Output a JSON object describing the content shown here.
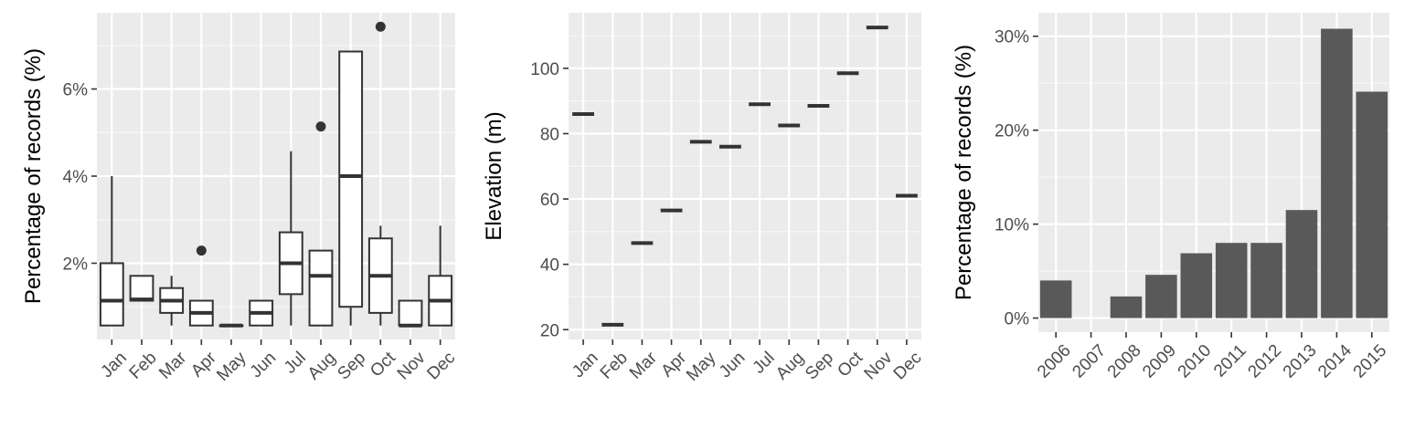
{
  "chart_data": [
    {
      "type": "box",
      "xlabel": "",
      "ylabel": "Percentage of records (%)",
      "ylim": [
        0.25,
        7.75
      ],
      "yticks": [
        2,
        4,
        6
      ],
      "ytick_labels": [
        "2%",
        "4%",
        "6%"
      ],
      "grid": true,
      "categories": [
        "Jan",
        "Feb",
        "Mar",
        "Apr",
        "May",
        "Jun",
        "Jul",
        "Aug",
        "Sep",
        "Oct",
        "Nov",
        "Dec"
      ],
      "boxes": [
        {
          "whisker_low": 0.57,
          "q1": 0.57,
          "median": 1.14,
          "q3": 2.0,
          "whisker_high": 4.0,
          "outliers": []
        },
        {
          "whisker_low": 1.14,
          "q1": 1.14,
          "median": 1.17,
          "q3": 1.71,
          "whisker_high": 1.71,
          "outliers": []
        },
        {
          "whisker_low": 0.57,
          "q1": 0.86,
          "median": 1.14,
          "q3": 1.43,
          "whisker_high": 1.71,
          "outliers": []
        },
        {
          "whisker_low": 0.57,
          "q1": 0.57,
          "median": 0.86,
          "q3": 1.14,
          "whisker_high": 1.14,
          "outliers": [
            2.29
          ]
        },
        {
          "whisker_low": 0.57,
          "q1": 0.57,
          "median": 0.57,
          "q3": 0.57,
          "whisker_high": 0.57,
          "outliers": []
        },
        {
          "whisker_low": 0.57,
          "q1": 0.57,
          "median": 0.86,
          "q3": 1.14,
          "whisker_high": 1.14,
          "outliers": []
        },
        {
          "whisker_low": 0.57,
          "q1": 1.29,
          "median": 2.0,
          "q3": 2.71,
          "whisker_high": 4.57,
          "outliers": []
        },
        {
          "whisker_low": 0.57,
          "q1": 0.57,
          "median": 1.71,
          "q3": 2.29,
          "whisker_high": 2.29,
          "outliers": [
            5.14
          ]
        },
        {
          "whisker_low": 0.57,
          "q1": 1.0,
          "median": 4.0,
          "q3": 6.86,
          "whisker_high": 6.86,
          "outliers": []
        },
        {
          "whisker_low": 0.57,
          "q1": 0.86,
          "median": 1.71,
          "q3": 2.57,
          "whisker_high": 2.86,
          "outliers": [
            7.43
          ]
        },
        {
          "whisker_low": 0.57,
          "q1": 0.57,
          "median": 0.57,
          "q3": 1.14,
          "whisker_high": 1.14,
          "outliers": []
        },
        {
          "whisker_low": 0.57,
          "q1": 0.57,
          "median": 1.14,
          "q3": 1.71,
          "whisker_high": 2.86,
          "outliers": []
        }
      ]
    },
    {
      "type": "scatter",
      "xlabel": "",
      "ylabel": "Elevation (m)",
      "ylim": [
        17,
        117
      ],
      "yticks": [
        20,
        40,
        60,
        80,
        100
      ],
      "ytick_labels": [
        "20",
        "40",
        "60",
        "80",
        "100"
      ],
      "grid": true,
      "categories": [
        "Jan",
        "Feb",
        "Mar",
        "Apr",
        "May",
        "Jun",
        "Jul",
        "Aug",
        "Sep",
        "Oct",
        "Nov",
        "Dec"
      ],
      "values": [
        86,
        21.5,
        46.5,
        56.5,
        77.5,
        76,
        89,
        82.5,
        88.5,
        98.5,
        112.5,
        61
      ]
    },
    {
      "type": "bar",
      "xlabel": "",
      "ylabel": "Percentage of records (%)",
      "ylim": [
        -1.5,
        32.5
      ],
      "yticks": [
        0,
        10,
        20,
        30
      ],
      "ytick_labels": [
        "0%",
        "10%",
        "20%",
        "30%"
      ],
      "grid": true,
      "categories": [
        "2006",
        "2007",
        "2008",
        "2009",
        "2010",
        "2011",
        "2012",
        "2013",
        "2014",
        "2015"
      ],
      "values": [
        4.0,
        0,
        2.3,
        4.6,
        6.9,
        8.0,
        8.0,
        11.5,
        30.8,
        24.1
      ]
    }
  ]
}
